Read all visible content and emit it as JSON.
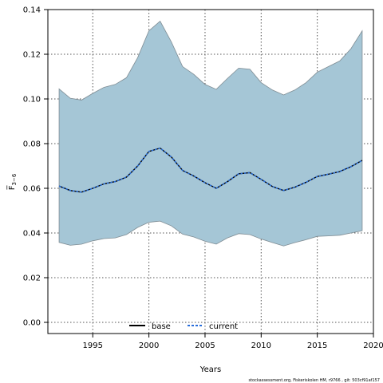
{
  "chart_data": {
    "type": "line",
    "xlabel": "Years",
    "ylabel": "F̅",
    "ylabel_sub": "3−6",
    "xlim": [
      1991,
      2020
    ],
    "ylim": [
      -0.005,
      0.14
    ],
    "x_ticks": [
      1995,
      2000,
      2005,
      2010,
      2015,
      2020
    ],
    "y_ticks": [
      0.0,
      0.02,
      0.04,
      0.06,
      0.08,
      0.1,
      0.12,
      0.14
    ],
    "x_tick_labels": [
      "1995",
      "2000",
      "2005",
      "2010",
      "2015",
      "2020"
    ],
    "y_tick_labels": [
      "0.00",
      "0.02",
      "0.04",
      "0.06",
      "0.08",
      "0.10",
      "0.12",
      "0.14"
    ],
    "grid": true,
    "legend_position": "bottom-center",
    "years": [
      1992,
      1993,
      1994,
      1995,
      1996,
      1997,
      1998,
      1999,
      2000,
      2001,
      2002,
      2003,
      2004,
      2005,
      2006,
      2007,
      2008,
      2009,
      2010,
      2011,
      2012,
      2013,
      2014,
      2015,
      2016,
      2017,
      2018,
      2019
    ],
    "band": {
      "color": "#a5c6d6",
      "edge_color": "#7f8c93",
      "upper": [
        0.1045,
        0.1003,
        0.0995,
        0.1025,
        0.1052,
        0.1065,
        0.1095,
        0.1185,
        0.1305,
        0.1348,
        0.1255,
        0.1145,
        0.111,
        0.1065,
        0.1043,
        0.1092,
        0.1138,
        0.1133,
        0.1073,
        0.104,
        0.1018,
        0.104,
        0.1073,
        0.112,
        0.1145,
        0.117,
        0.1225,
        0.1305
      ],
      "lower": [
        0.0358,
        0.0345,
        0.035,
        0.0365,
        0.0375,
        0.0378,
        0.0393,
        0.0425,
        0.0448,
        0.0453,
        0.0432,
        0.0395,
        0.0382,
        0.0363,
        0.035,
        0.0378,
        0.0397,
        0.0393,
        0.0373,
        0.0357,
        0.0342,
        0.0357,
        0.037,
        0.0385,
        0.0387,
        0.039,
        0.04,
        0.041
      ]
    },
    "series": [
      {
        "name": "base",
        "color": "#000000",
        "values": [
          0.061,
          0.059,
          0.0583,
          0.06,
          0.062,
          0.063,
          0.065,
          0.07,
          0.0765,
          0.078,
          0.074,
          0.068,
          0.0655,
          0.0625,
          0.06,
          0.063,
          0.0665,
          0.067,
          0.064,
          0.0608,
          0.059,
          0.0605,
          0.0627,
          0.0653,
          0.0663,
          0.0675,
          0.0697,
          0.0725
        ]
      },
      {
        "name": "current",
        "color": "#2a6fdb",
        "values": [
          0.061,
          0.059,
          0.0583,
          0.06,
          0.062,
          0.063,
          0.065,
          0.07,
          0.0765,
          0.078,
          0.074,
          0.068,
          0.0655,
          0.0625,
          0.06,
          0.063,
          0.0665,
          0.067,
          0.064,
          0.0608,
          0.059,
          0.0605,
          0.0627,
          0.0653,
          0.0663,
          0.0675,
          0.0697,
          0.0725
        ]
      }
    ]
  },
  "credit": "stockassessment.org, Fiskeriskolen HM, r9766 , git: 503cf91af157"
}
